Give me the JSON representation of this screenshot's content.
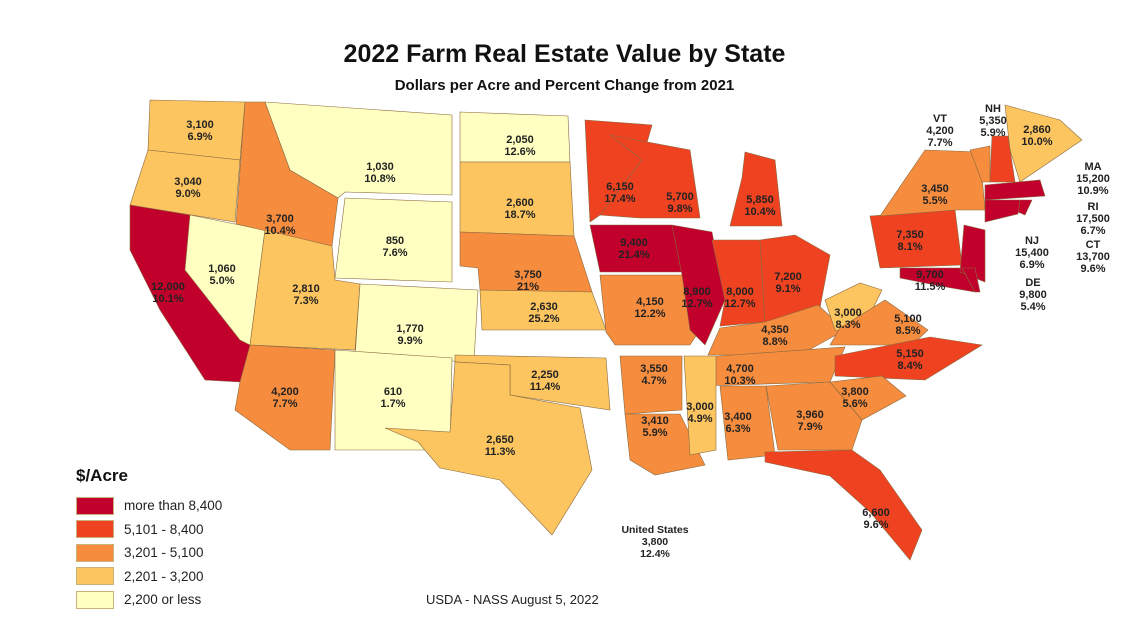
{
  "title": "2022 Farm Real Estate Value by State",
  "subtitle": "Dollars per Acre and Percent Change from 2021",
  "legend": {
    "title": "$/Acre",
    "items": [
      {
        "label": "more than 8,400",
        "color": "#c1002b"
      },
      {
        "label": "5,101 - 8,400",
        "color": "#ee4221"
      },
      {
        "label": "3,201 - 5,100",
        "color": "#f68c3d"
      },
      {
        "label": "2,201 - 3,200",
        "color": "#fcc560"
      },
      {
        "label": "2,200 or less",
        "color": "#ffffc2"
      }
    ]
  },
  "united_states": {
    "label": "United States",
    "value": "3,800",
    "change": "12.4%"
  },
  "source": "USDA - NASS August 5, 2022",
  "states": {
    "WA": {
      "value": "3,100",
      "change": "6.9%",
      "tier": 3
    },
    "OR": {
      "value": "3,040",
      "change": "9.0%",
      "tier": 3
    },
    "CA": {
      "value": "12,000",
      "change": "10.1%",
      "tier": 0
    },
    "NV": {
      "value": "1,060",
      "change": "5.0%",
      "tier": 4
    },
    "ID": {
      "value": "3,700",
      "change": "10.4%",
      "tier": 2
    },
    "MT": {
      "value": "1,030",
      "change": "10.8%",
      "tier": 4
    },
    "WY": {
      "value": "850",
      "change": "7.6%",
      "tier": 4
    },
    "UT": {
      "value": "2,810",
      "change": "7.3%",
      "tier": 3
    },
    "CO": {
      "value": "1,770",
      "change": "9.9%",
      "tier": 4
    },
    "AZ": {
      "value": "4,200",
      "change": "7.7%",
      "tier": 2
    },
    "NM": {
      "value": "610",
      "change": "1.7%",
      "tier": 4
    },
    "ND": {
      "value": "2,050",
      "change": "12.6%",
      "tier": 4
    },
    "SD": {
      "value": "2,600",
      "change": "18.7%",
      "tier": 3
    },
    "NE": {
      "value": "3,750",
      "change": "21%",
      "tier": 2
    },
    "KS": {
      "value": "2,630",
      "change": "25.2%",
      "tier": 3
    },
    "OK": {
      "value": "2,250",
      "change": "11.4%",
      "tier": 3
    },
    "TX": {
      "value": "2,650",
      "change": "11.3%",
      "tier": 3
    },
    "MN": {
      "value": "6,150",
      "change": "17.4%",
      "tier": 1
    },
    "WI": {
      "value": "5,700",
      "change": "9.8%",
      "tier": 1
    },
    "MI": {
      "value": "5,850",
      "change": "10.4%",
      "tier": 1
    },
    "IA": {
      "value": "9,400",
      "change": "21.4%",
      "tier": 0
    },
    "MO": {
      "value": "4,150",
      "change": "12.2%",
      "tier": 2
    },
    "IL": {
      "value": "8,900",
      "change": "12.7%",
      "tier": 0
    },
    "IN": {
      "value": "8,000",
      "change": "12.7%",
      "tier": 1
    },
    "OH": {
      "value": "7,200",
      "change": "9.1%",
      "tier": 1
    },
    "KY": {
      "value": "4,350",
      "change": "8.8%",
      "tier": 2
    },
    "TN": {
      "value": "4,700",
      "change": "10.3%",
      "tier": 2
    },
    "WV": {
      "value": "3,000",
      "change": "8.3%",
      "tier": 3
    },
    "VA": {
      "value": "5,100",
      "change": "8.5%",
      "tier": 2
    },
    "NC": {
      "value": "5,150",
      "change": "8.4%",
      "tier": 1
    },
    "AR": {
      "value": "3,550",
      "change": "4.7%",
      "tier": 2
    },
    "LA": {
      "value": "3,410",
      "change": "5.9%",
      "tier": 2
    },
    "MS": {
      "value": "3,000",
      "change": "4.9%",
      "tier": 3
    },
    "AL": {
      "value": "3,400",
      "change": "6.3%",
      "tier": 2
    },
    "GA": {
      "value": "3,960",
      "change": "7.9%",
      "tier": 2
    },
    "SC": {
      "value": "3,800",
      "change": "5.6%",
      "tier": 2
    },
    "FL": {
      "value": "6,600",
      "change": "9.6%",
      "tier": 1
    },
    "PA": {
      "value": "7,350",
      "change": "8.1%",
      "tier": 1
    },
    "NY": {
      "value": "3,450",
      "change": "5.5%",
      "tier": 2
    },
    "MD": {
      "value": "9,700",
      "change": "11.5%",
      "tier": 0
    },
    "ME": {
      "value": "2,860",
      "change": "10.0%",
      "tier": 3
    },
    "VT": {
      "label": "VT",
      "value": "4,200",
      "change": "7.7%",
      "tier": 2
    },
    "NH": {
      "label": "NH",
      "value": "5,350",
      "change": "5.9%",
      "tier": 1
    },
    "MA": {
      "label": "MA",
      "value": "15,200",
      "change": "10.9%",
      "tier": 0
    },
    "RI": {
      "label": "RI",
      "value": "17,500",
      "change": "6.7%",
      "tier": 0
    },
    "CT": {
      "label": "CT",
      "value": "13,700",
      "change": "9.6%",
      "tier": 0
    },
    "NJ": {
      "label": "NJ",
      "value": "15,400",
      "change": "6.9%",
      "tier": 0
    },
    "DE": {
      "label": "DE",
      "value": "9,800",
      "change": "5.4%",
      "tier": 0
    }
  }
}
